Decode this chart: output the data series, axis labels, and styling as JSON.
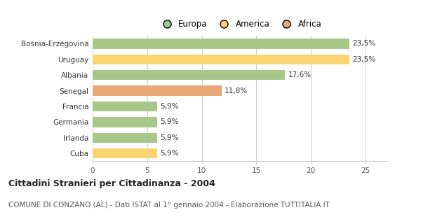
{
  "categories": [
    "Bosnia-Erzegovina",
    "Uruguay",
    "Albania",
    "Senegal",
    "Francia",
    "Germania",
    "Irlanda",
    "Cuba"
  ],
  "values": [
    23.5,
    23.5,
    17.6,
    11.8,
    5.9,
    5.9,
    5.9,
    5.9
  ],
  "labels": [
    "23,5%",
    "23,5%",
    "17,6%",
    "11,8%",
    "5,9%",
    "5,9%",
    "5,9%",
    "5,9%"
  ],
  "colors": [
    "#a8c88a",
    "#f9d472",
    "#a8c88a",
    "#e8a878",
    "#a8c88a",
    "#a8c88a",
    "#a8c88a",
    "#f9d472"
  ],
  "legend": [
    {
      "label": "Europa",
      "color": "#a8c88a"
    },
    {
      "label": "America",
      "color": "#f9d472"
    },
    {
      "label": "Africa",
      "color": "#e8a878"
    }
  ],
  "xlim": [
    0,
    27
  ],
  "xticks": [
    0,
    5,
    10,
    15,
    20,
    25
  ],
  "title_bold": "Cittadini Stranieri per Cittadinanza - 2004",
  "subtitle": "COMUNE DI CONZANO (AL) - Dati ISTAT al 1° gennaio 2004 - Elaborazione TUTTITALIA.IT",
  "background_color": "#ffffff",
  "bar_height": 0.65,
  "grid_color": "#cccccc",
  "title_fontsize": 9,
  "subtitle_fontsize": 7.5,
  "label_fontsize": 7.5,
  "tick_fontsize": 7.5,
  "legend_fontsize": 8.5
}
